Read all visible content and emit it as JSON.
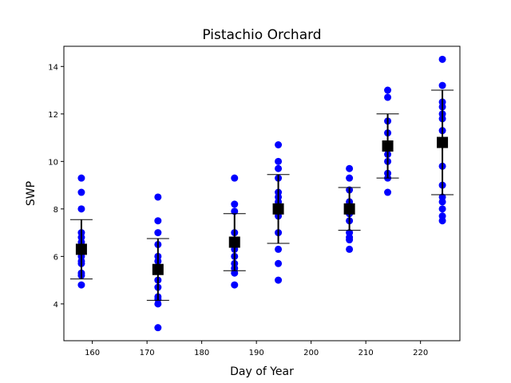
{
  "chart_data": {
    "type": "scatter",
    "title": "Pistachio Orchard",
    "xlabel": "Day of Year",
    "ylabel": "SWP",
    "xlim": [
      154.8,
      227.2
    ],
    "ylim": [
      2.45,
      14.85
    ],
    "xticks": [
      160,
      170,
      180,
      190,
      200,
      210,
      220
    ],
    "yticks": [
      4,
      6,
      8,
      10,
      12,
      14
    ],
    "grid": false,
    "legend": "none",
    "colors": {
      "points": "#0000ff",
      "summary": "#000000"
    },
    "series": [
      {
        "marker": "circle",
        "points": [
          {
            "x": 158,
            "y": 9.3
          },
          {
            "x": 158,
            "y": 8.7
          },
          {
            "x": 158,
            "y": 8.0
          },
          {
            "x": 158,
            "y": 7.0
          },
          {
            "x": 158,
            "y": 6.8
          },
          {
            "x": 158,
            "y": 6.6
          },
          {
            "x": 158,
            "y": 6.3
          },
          {
            "x": 158,
            "y": 6.0
          },
          {
            "x": 158,
            "y": 5.8
          },
          {
            "x": 158,
            "y": 5.7
          },
          {
            "x": 158,
            "y": 5.3
          },
          {
            "x": 158,
            "y": 5.2
          },
          {
            "x": 158,
            "y": 4.8
          },
          {
            "x": 172,
            "y": 8.5
          },
          {
            "x": 172,
            "y": 7.5
          },
          {
            "x": 172,
            "y": 7.0
          },
          {
            "x": 172,
            "y": 6.5
          },
          {
            "x": 172,
            "y": 6.0
          },
          {
            "x": 172,
            "y": 5.8
          },
          {
            "x": 172,
            "y": 5.5
          },
          {
            "x": 172,
            "y": 5.0
          },
          {
            "x": 172,
            "y": 4.7
          },
          {
            "x": 172,
            "y": 4.3
          },
          {
            "x": 172,
            "y": 4.2
          },
          {
            "x": 172,
            "y": 4.0
          },
          {
            "x": 172,
            "y": 3.0
          },
          {
            "x": 186,
            "y": 9.3
          },
          {
            "x": 186,
            "y": 8.2
          },
          {
            "x": 186,
            "y": 7.9
          },
          {
            "x": 186,
            "y": 7.0
          },
          {
            "x": 186,
            "y": 6.5
          },
          {
            "x": 186,
            "y": 6.3
          },
          {
            "x": 186,
            "y": 6.0
          },
          {
            "x": 186,
            "y": 5.7
          },
          {
            "x": 186,
            "y": 5.5
          },
          {
            "x": 186,
            "y": 5.3
          },
          {
            "x": 186,
            "y": 4.8
          },
          {
            "x": 194,
            "y": 10.7
          },
          {
            "x": 194,
            "y": 10.0
          },
          {
            "x": 194,
            "y": 9.7
          },
          {
            "x": 194,
            "y": 9.3
          },
          {
            "x": 194,
            "y": 8.7
          },
          {
            "x": 194,
            "y": 8.5
          },
          {
            "x": 194,
            "y": 8.3
          },
          {
            "x": 194,
            "y": 8.0
          },
          {
            "x": 194,
            "y": 7.7
          },
          {
            "x": 194,
            "y": 7.0
          },
          {
            "x": 194,
            "y": 6.3
          },
          {
            "x": 194,
            "y": 5.7
          },
          {
            "x": 194,
            "y": 5.0
          },
          {
            "x": 207,
            "y": 9.7
          },
          {
            "x": 207,
            "y": 9.3
          },
          {
            "x": 207,
            "y": 8.8
          },
          {
            "x": 207,
            "y": 8.3
          },
          {
            "x": 207,
            "y": 8.0
          },
          {
            "x": 207,
            "y": 7.8
          },
          {
            "x": 207,
            "y": 7.5
          },
          {
            "x": 207,
            "y": 7.0
          },
          {
            "x": 207,
            "y": 6.8
          },
          {
            "x": 207,
            "y": 6.7
          },
          {
            "x": 207,
            "y": 6.3
          },
          {
            "x": 214,
            "y": 13.0
          },
          {
            "x": 214,
            "y": 12.7
          },
          {
            "x": 214,
            "y": 11.7
          },
          {
            "x": 214,
            "y": 11.2
          },
          {
            "x": 214,
            "y": 10.7
          },
          {
            "x": 214,
            "y": 10.3
          },
          {
            "x": 214,
            "y": 10.0
          },
          {
            "x": 214,
            "y": 9.5
          },
          {
            "x": 214,
            "y": 9.3
          },
          {
            "x": 214,
            "y": 8.7
          },
          {
            "x": 224,
            "y": 14.3
          },
          {
            "x": 224,
            "y": 13.2
          },
          {
            "x": 224,
            "y": 12.5
          },
          {
            "x": 224,
            "y": 12.3
          },
          {
            "x": 224,
            "y": 12.0
          },
          {
            "x": 224,
            "y": 11.8
          },
          {
            "x": 224,
            "y": 11.3
          },
          {
            "x": 224,
            "y": 10.8
          },
          {
            "x": 224,
            "y": 9.8
          },
          {
            "x": 224,
            "y": 9.0
          },
          {
            "x": 224,
            "y": 8.5
          },
          {
            "x": 224,
            "y": 8.3
          },
          {
            "x": 224,
            "y": 8.0
          },
          {
            "x": 224,
            "y": 7.7
          },
          {
            "x": 224,
            "y": 7.5
          }
        ]
      },
      {
        "marker": "square-with-errorbar",
        "points": [
          {
            "x": 158,
            "y": 6.3,
            "err": 1.25
          },
          {
            "x": 172,
            "y": 5.45,
            "err": 1.3
          },
          {
            "x": 186,
            "y": 6.6,
            "err": 1.2
          },
          {
            "x": 194,
            "y": 8.0,
            "err": 1.45
          },
          {
            "x": 207,
            "y": 8.0,
            "err": 0.9
          },
          {
            "x": 214,
            "y": 10.65,
            "err": 1.35
          },
          {
            "x": 224,
            "y": 10.8,
            "err": 2.2
          }
        ]
      }
    ]
  }
}
